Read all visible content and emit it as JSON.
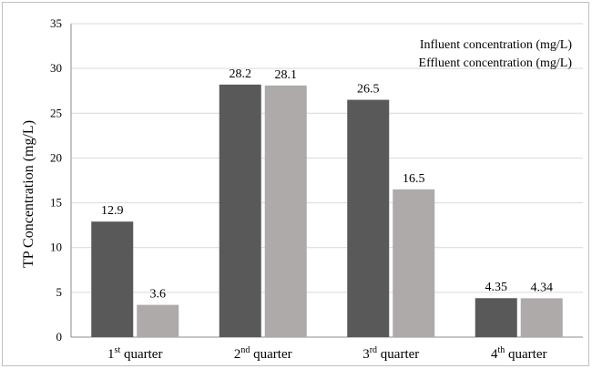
{
  "chart_data": {
    "type": "bar",
    "categories": [
      "1st quarter",
      "2nd quarter",
      "3rd quarter",
      "4th quarter"
    ],
    "category_parts": [
      {
        "num": "1",
        "sup": "st",
        "rest": " quarter"
      },
      {
        "num": "2",
        "sup": "nd",
        "rest": " quarter"
      },
      {
        "num": "3",
        "sup": "rd",
        "rest": " quarter"
      },
      {
        "num": "4",
        "sup": "th",
        "rest": " quarter"
      }
    ],
    "series": [
      {
        "name": "Influent concentration (mg/L)",
        "values": [
          12.9,
          28.2,
          26.5,
          4.35
        ],
        "labels": [
          "12.9",
          "28.2",
          "26.5",
          "4.35"
        ],
        "color": "#595959"
      },
      {
        "name": "Effluent concentration (mg/L)",
        "values": [
          3.6,
          28.1,
          16.5,
          4.34
        ],
        "labels": [
          "3.6",
          "28.1",
          "16.5",
          "4.34"
        ],
        "color": "#aeaaaa"
      }
    ],
    "ylabel": "TP Concentration (mg/L)",
    "xlabel": "",
    "title": "",
    "ylim": [
      0,
      35
    ],
    "yticks": [
      0,
      5,
      10,
      15,
      20,
      25,
      30,
      35
    ],
    "grid": true,
    "legend_position": "top-right"
  }
}
